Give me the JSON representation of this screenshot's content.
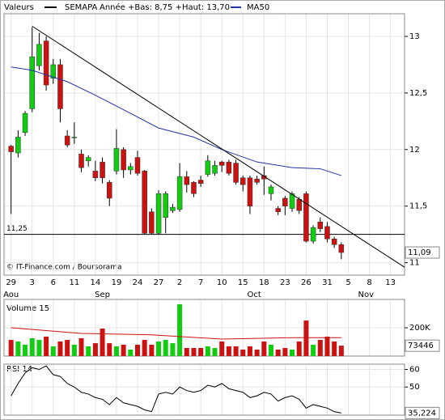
{
  "chart_data": [
    {
      "type": "candlestick",
      "header_left": "Valeurs",
      "title": "SEMAPA",
      "subtitle": "Année +Bas: 8,75 +Haut: 13,70",
      "source": "© IT-Finance.com / Boursorama",
      "up_color": "#11cc11",
      "down_color": "#cc1111",
      "open": [
        12.03,
        11.97,
        12.15,
        12.36,
        12.74,
        12.96,
        12.63,
        12.75,
        12.12,
        12.11,
        11.96,
        11.9,
        11.81,
        11.89,
        11.71,
        11.81,
        12.0,
        11.82,
        11.93,
        11.81,
        11.45,
        11.26,
        11.4,
        11.46,
        11.47,
        11.76,
        11.71,
        11.73,
        11.78,
        11.79,
        11.89,
        11.89,
        11.88,
        11.75,
        11.75,
        11.74,
        11.77,
        11.61,
        11.48,
        11.57,
        11.48,
        11.56,
        11.61,
        11.19,
        11.36,
        11.32,
        11.21,
        11.16
      ],
      "high": [
        12.04,
        12.17,
        12.34,
        13.08,
        13.03,
        13.0,
        12.8,
        12.8,
        12.17,
        12.24,
        12.0,
        11.95,
        11.9,
        11.93,
        11.73,
        12.18,
        12.02,
        11.88,
        11.99,
        11.82,
        11.48,
        11.64,
        11.63,
        11.52,
        11.88,
        11.81,
        11.72,
        11.77,
        11.95,
        11.9,
        11.9,
        11.91,
        11.91,
        11.77,
        11.77,
        11.77,
        11.85,
        11.69,
        11.5,
        11.59,
        11.63,
        11.58,
        11.63,
        11.33,
        11.4,
        11.36,
        11.23,
        11.18
      ],
      "low": [
        11.43,
        11.93,
        12.12,
        12.33,
        12.7,
        12.52,
        12.58,
        12.24,
        12.02,
        12.05,
        11.8,
        11.85,
        11.72,
        11.7,
        11.5,
        11.78,
        11.75,
        11.78,
        11.77,
        11.25,
        11.25,
        11.25,
        11.26,
        11.44,
        11.45,
        11.62,
        11.58,
        11.67,
        11.76,
        11.77,
        11.8,
        11.77,
        11.69,
        11.63,
        11.43,
        11.69,
        11.6,
        11.55,
        11.42,
        11.42,
        11.45,
        11.43,
        11.18,
        11.17,
        11.27,
        11.18,
        11.13,
        11.03
      ],
      "close": [
        11.98,
        12.11,
        12.32,
        12.82,
        12.93,
        12.57,
        12.75,
        12.36,
        12.04,
        12.11,
        11.84,
        11.93,
        11.75,
        11.75,
        11.57,
        12.01,
        11.82,
        11.85,
        11.79,
        11.26,
        11.26,
        11.61,
        11.61,
        11.49,
        11.76,
        11.69,
        11.61,
        11.7,
        11.9,
        11.86,
        11.86,
        11.79,
        11.71,
        11.69,
        11.5,
        11.71,
        11.74,
        11.67,
        11.45,
        11.5,
        11.61,
        11.46,
        11.19,
        11.31,
        11.3,
        11.21,
        11.16,
        11.09
      ],
      "ma": {
        "name": "MA50",
        "color": "#2233aa",
        "x": [
          0,
          3,
          8,
          12,
          17,
          21,
          26,
          30,
          35,
          40,
          44,
          47
        ],
        "values": [
          12.73,
          12.7,
          12.6,
          12.48,
          12.32,
          12.19,
          12.11,
          12.0,
          11.89,
          11.84,
          11.83,
          11.77
        ]
      },
      "trendline": {
        "color": "#000000",
        "x": [
          3,
          56
        ],
        "values": [
          13.09,
          10.96
        ]
      },
      "hline": {
        "value": 11.25,
        "label": "11,25"
      },
      "last": {
        "value": 11.09,
        "label": "11,09"
      },
      "xlim": [
        -1,
        56
      ],
      "ylim": [
        10.89,
        13.2
      ],
      "yticks": [
        11,
        {
          "value": 11.5,
          "label": "11,5"
        },
        12,
        {
          "value": 12.5,
          "label": "12,5"
        },
        13
      ],
      "xticks": [
        {
          "value": 0,
          "label": "29"
        },
        {
          "value": 3,
          "label": "3"
        },
        {
          "value": 6,
          "label": "6"
        },
        {
          "value": 9,
          "label": "11"
        },
        {
          "value": 12,
          "label": "14"
        },
        {
          "value": 15,
          "label": "19"
        },
        {
          "value": 18,
          "label": "24"
        },
        {
          "value": 21,
          "label": "27"
        },
        {
          "value": 24,
          "label": "2"
        },
        {
          "value": 27,
          "label": "7"
        },
        {
          "value": 30,
          "label": "10"
        },
        {
          "value": 33,
          "label": "15"
        },
        {
          "value": 36,
          "label": "18"
        },
        {
          "value": 39,
          "label": "23"
        },
        {
          "value": 42,
          "label": "26"
        },
        {
          "value": 45,
          "label": "31"
        },
        {
          "value": 48,
          "label": "5"
        },
        {
          "value": 51,
          "label": "8"
        },
        {
          "value": 54,
          "label": "13"
        }
      ],
      "months": [
        {
          "value": 0,
          "label": "Aou"
        },
        {
          "value": 13,
          "label": "Sep"
        },
        {
          "value": 34.6,
          "label": "Oct"
        },
        {
          "value": 50.5,
          "label": "Nov"
        }
      ],
      "grid": true
    },
    {
      "type": "bar",
      "title": "Volume 15",
      "values": [
        114000,
        103000,
        80000,
        126000,
        114000,
        137000,
        69000,
        103000,
        114000,
        80000,
        126000,
        69000,
        91000,
        194000,
        91000,
        69000,
        80000,
        46000,
        80000,
        114000,
        80000,
        103000,
        114000,
        91000,
        366000,
        57000,
        57000,
        57000,
        69000,
        57000,
        103000,
        69000,
        69000,
        46000,
        69000,
        46000,
        103000,
        80000,
        46000,
        57000,
        46000,
        103000,
        251000,
        80000,
        114000,
        137000,
        103000,
        73446
      ],
      "ma": {
        "color": "#cc1111",
        "x": [
          0,
          10,
          20,
          30,
          40,
          47
        ],
        "values": [
          200000,
          160000,
          150000,
          120000,
          130000,
          130000
        ]
      },
      "last": 73446,
      "xlim": [
        -1,
        56
      ],
      "ylim": [
        0,
        400000
      ],
      "yticks": [
        {
          "value": 200000,
          "label": "200K"
        }
      ]
    },
    {
      "type": "line",
      "title": "RSI 14",
      "color": "#000000",
      "values": [
        45,
        52,
        58,
        61,
        60,
        62,
        57,
        56,
        52,
        50,
        47,
        46,
        44,
        43,
        40,
        44,
        41,
        40,
        39,
        37,
        36,
        46,
        47,
        46,
        50,
        48,
        47,
        48,
        51,
        50,
        52,
        49,
        48,
        47,
        44,
        45,
        47,
        46,
        42,
        44,
        45,
        43,
        38,
        40,
        39,
        38,
        36,
        35.224
      ],
      "last": {
        "value": 35.224,
        "label": "35,224"
      },
      "xlim": [
        -1,
        56
      ],
      "ylim": [
        34,
        63
      ],
      "yticks": [
        50,
        60
      ]
    }
  ]
}
